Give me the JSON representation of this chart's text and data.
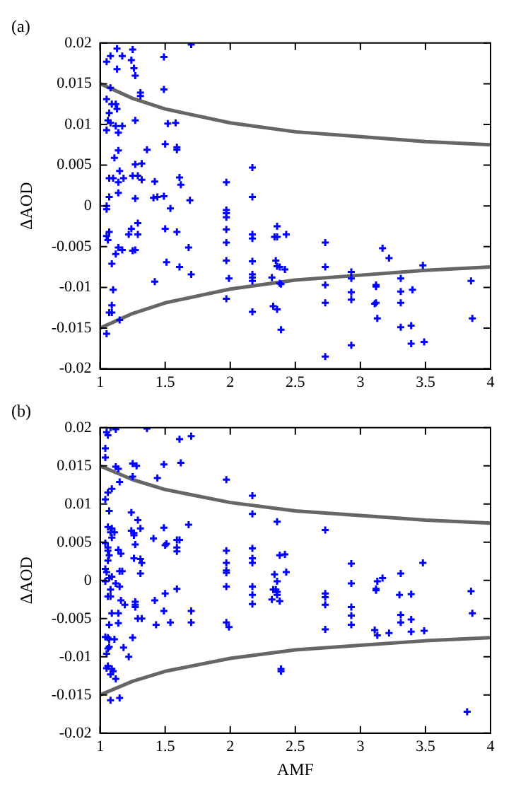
{
  "chart_data": [
    {
      "type": "scatter",
      "title": "(a)",
      "ylabel": "ΔAOD",
      "xlim": [
        1,
        4
      ],
      "xticks": [
        1,
        1.5,
        2,
        2.5,
        3,
        3.5,
        4
      ],
      "ylim": [
        -0.02,
        0.02
      ],
      "yticks": [
        -0.02,
        -0.015,
        -0.01,
        -0.005,
        0,
        0.005,
        0.01,
        0.015,
        0.02
      ],
      "grid": false,
      "legend": false,
      "series": [
        {
          "type": "scatter",
          "color": "#0000ff",
          "marker": "cross",
          "x": [
            1.05,
            1.08,
            1.13,
            1.17,
            1.13,
            1.25,
            1.24,
            1.26,
            1.27,
            1.49,
            1.7,
            1.49,
            1.08,
            1.05,
            1.09,
            1.12,
            1.13,
            1.07,
            1.06,
            1.08,
            1.12,
            1.17,
            1.05,
            1.14,
            1.31,
            1.31,
            1.27,
            1.52,
            1.58,
            1.5,
            1.59,
            1.59,
            1.36,
            1.14,
            1.11,
            1.15,
            1.07,
            1.1,
            1.14,
            1.18,
            1.27,
            1.32,
            1.25,
            1.29,
            1.32,
            1.14,
            1.07,
            1.27,
            1.41,
            1.44,
            1.49,
            1.42,
            1.61,
            1.62,
            1.69,
            1.05,
            1.05,
            1.54,
            1.29,
            1.24,
            1.22,
            1.29,
            1.07,
            1.05,
            1.06,
            1.5,
            1.59,
            1.27,
            1.25,
            1.14,
            1.17,
            1.12,
            1.68,
            1.09,
            1.51,
            1.61,
            1.7,
            1.42,
            1.1,
            1.09,
            1.09,
            1.07,
            1.15,
            1.05,
            1.97,
            1.97,
            1.97,
            1.97,
            1.97,
            1.97,
            1.97,
            1.99,
            1.97,
            2.17,
            2.17,
            2.17,
            2.17,
            2.17,
            2.17,
            2.17,
            2.17,
            2.17,
            2.32,
            2.34,
            2.36,
            2.36,
            2.43,
            2.35,
            2.36,
            2.38,
            2.42,
            2.38,
            2.39,
            2.33,
            2.36,
            2.39,
            2.73,
            2.73,
            2.73,
            2.73,
            2.73,
            2.93,
            2.93,
            2.93,
            2.93,
            2.93,
            3.17,
            3.22,
            3.12,
            3.12,
            3.12,
            3.11,
            3.13,
            3.31,
            3.31,
            3.31,
            3.31,
            3.4,
            3.39,
            3.39,
            3.48,
            3.49,
            3.85,
            3.86
          ],
          "values": [
            0.0177,
            0.0184,
            0.0193,
            0.0184,
            0.0168,
            0.0192,
            0.0179,
            0.0169,
            0.016,
            0.0183,
            0.0198,
            0.0143,
            0.0145,
            0.0131,
            0.0125,
            0.0125,
            0.0119,
            0.0114,
            0.0105,
            0.0102,
            0.0098,
            0.0098,
            0.0093,
            0.009,
            0.0139,
            0.0135,
            0.0105,
            0.0101,
            0.0102,
            0.0076,
            0.0072,
            0.0069,
            0.0069,
            0.0068,
            0.0059,
            0.0043,
            0.0034,
            0.0034,
            0.0029,
            0.0034,
            0.0051,
            0.0052,
            0.0037,
            0.0037,
            0.0032,
            0.0016,
            0.0011,
            0.0009,
            0.001,
            0.0011,
            0.0012,
            0.003,
            0.0035,
            0.0026,
            0.0007,
            0,
            -0.0004,
            -0.0003,
            -0.0021,
            -0.0028,
            -0.0035,
            -0.0035,
            -0.0032,
            -0.0037,
            -0.0042,
            -0.0028,
            -0.0032,
            -0.0054,
            -0.0055,
            -0.0051,
            -0.0054,
            -0.0059,
            -0.0051,
            -0.0071,
            -0.0069,
            -0.0075,
            -0.0084,
            -0.0093,
            -0.0103,
            -0.0122,
            -0.0131,
            -0.0131,
            -0.014,
            -0.0157,
            0.0029,
            -0.0005,
            -0.0009,
            -0.0014,
            -0.0029,
            -0.0045,
            -0.0067,
            -0.0089,
            -0.0114,
            0.0047,
            0.0011,
            -0.0035,
            -0.004,
            -0.0068,
            -0.0084,
            -0.0088,
            -0.0092,
            -0.013,
            -0.0088,
            -0.0038,
            -0.0038,
            -0.0025,
            -0.0035,
            -0.0067,
            -0.0074,
            -0.0075,
            -0.0078,
            -0.0095,
            -0.0096,
            -0.0123,
            -0.0127,
            -0.0152,
            -0.0045,
            -0.0075,
            -0.0097,
            -0.0119,
            -0.0185,
            -0.0081,
            -0.0089,
            -0.0106,
            -0.0115,
            -0.0171,
            -0.0052,
            -0.0064,
            -0.0097,
            -0.0099,
            -0.0119,
            -0.012,
            -0.0138,
            -0.0089,
            -0.0105,
            -0.0119,
            -0.0149,
            -0.0103,
            -0.0147,
            -0.0169,
            -0.0073,
            -0.0167,
            -0.0092,
            -0.0138
          ]
        },
        {
          "type": "line",
          "color": "#666666",
          "marker": "none",
          "line_style": "solid",
          "x": [
            1,
            1.25,
            1.5,
            2,
            2.5,
            3,
            3.5,
            4
          ],
          "values": [
            0.015,
            0.0132,
            0.0119,
            0.0102,
            0.0091,
            0.0085,
            0.0079,
            0.0075
          ]
        },
        {
          "type": "line",
          "color": "#666666",
          "marker": "none",
          "line_style": "solid",
          "x": [
            1,
            1.25,
            1.5,
            2,
            2.5,
            3,
            3.5,
            4
          ],
          "values": [
            -0.015,
            -0.0132,
            -0.0119,
            -0.0102,
            -0.0091,
            -0.0085,
            -0.0079,
            -0.0075
          ]
        }
      ]
    },
    {
      "type": "scatter",
      "title": "(b)",
      "xlabel": "AMF",
      "ylabel": "ΔAOD",
      "xlim": [
        1,
        4
      ],
      "xticks": [
        1,
        1.5,
        2,
        2.5,
        3,
        3.5,
        4
      ],
      "ylim": [
        -0.02,
        0.02
      ],
      "yticks": [
        -0.02,
        -0.015,
        -0.01,
        -0.005,
        0,
        0.005,
        0.01,
        0.015,
        0.02
      ],
      "grid": false,
      "legend": false,
      "series": [
        {
          "type": "scatter",
          "color": "#0000ff",
          "marker": "cross",
          "x": [
            1.08,
            1.12,
            1.36,
            1.05,
            1.06,
            1.61,
            1.7,
            1.04,
            1.04,
            1.12,
            1.14,
            1.15,
            1.25,
            1.28,
            1.25,
            1.44,
            1.49,
            1.62,
            1.09,
            1.06,
            1.04,
            1.07,
            1.24,
            1.29,
            1.97,
            2.17,
            2.17,
            2.36,
            2.73,
            1.06,
            1.09,
            1.08,
            1.11,
            1.09,
            1.24,
            1.26,
            1.26,
            1.31,
            1.49,
            1.68,
            1.41,
            1.59,
            1.61,
            1.5,
            1.51,
            1.59,
            1.59,
            1.27,
            1.04,
            1.06,
            1.06,
            1.07,
            1.14,
            1.16,
            1.26,
            1.31,
            1.32,
            1.31,
            1.06,
            1.04,
            1.05,
            1.15,
            1.17,
            1.07,
            1.09,
            1.04,
            1.12,
            1.15,
            1.08,
            1.06,
            1.08,
            1.16,
            1.19,
            1.27,
            1.27,
            1.27,
            1.42,
            1.5,
            1.59,
            1.49,
            1.7,
            1.09,
            1.14,
            1.29,
            1.32,
            1.07,
            1.14,
            1.54,
            1.7,
            1.43,
            1.04,
            1.06,
            1.07,
            1.11,
            1.07,
            1.06,
            1.25,
            1.18,
            1.22,
            1.05,
            1.06,
            1.05,
            1.09,
            1.1,
            1.08,
            1.12,
            1.08,
            1.15,
            1.97,
            1.97,
            1.97,
            1.97,
            1.97,
            1.97,
            1.99,
            2.17,
            2.17,
            2.17,
            2.17,
            2.17,
            2.17,
            2.38,
            2.42,
            2.43,
            2.34,
            2.36,
            2.33,
            2.35,
            2.36,
            2.36,
            2.32,
            2.38,
            2.39,
            2.39,
            2.73,
            2.73,
            2.73,
            2.73,
            2.93,
            2.93,
            2.93,
            2.93,
            2.93,
            3.13,
            3.17,
            3.12,
            3.12,
            3.11,
            3.13,
            3.22,
            3.31,
            3.3,
            3.31,
            3.31,
            3.39,
            3.39,
            3.39,
            3.48,
            3.49,
            3.85,
            3.86,
            3.82
          ],
          "values": [
            0.02,
            0.0198,
            0.0199,
            0.0194,
            0.019,
            0.0185,
            0.0189,
            0.0173,
            0.0161,
            0.0149,
            0.0146,
            0.0129,
            0.0153,
            0.015,
            0.0136,
            0.0134,
            0.0152,
            0.0154,
            0.012,
            0.0115,
            0.0106,
            0.0091,
            0.0089,
            0.0079,
            0.0132,
            0.0111,
            0.0087,
            0.0077,
            0.0066,
            0.007,
            0.0068,
            0.0063,
            0.0063,
            0.0056,
            0.0065,
            0.0062,
            0.0059,
            0.0068,
            0.0069,
            0.0073,
            0.0055,
            0.0053,
            0.0053,
            0.0046,
            0.0048,
            0.0043,
            0.0038,
            0.0047,
            0.0049,
            0.0043,
            0.0039,
            0.0033,
            0.004,
            0.0035,
            0.0029,
            0.0028,
            0.0023,
            0.0009,
            0.0026,
            0.0015,
            0.0011,
            0.0012,
            0.0012,
            0.0003,
            0.0005,
            -0.0001,
            -0.0004,
            -0.0008,
            -0.0012,
            -0.0021,
            -0.0021,
            -0.0026,
            -0.0032,
            -0.0028,
            -0.0032,
            -0.0035,
            -0.0026,
            -0.0017,
            -0.0011,
            -0.004,
            -0.004,
            -0.0043,
            -0.0043,
            -0.005,
            -0.005,
            -0.0058,
            -0.0056,
            -0.0055,
            -0.0055,
            -0.0058,
            -0.0074,
            -0.0075,
            -0.0077,
            -0.0077,
            -0.0087,
            -0.0089,
            -0.0075,
            -0.0088,
            -0.01,
            -0.0096,
            -0.0112,
            -0.0115,
            -0.0116,
            -0.0119,
            -0.0123,
            -0.0129,
            -0.0157,
            -0.0154,
            0.0039,
            0.0023,
            0.0013,
            0.001,
            -0.0008,
            -0.0055,
            -0.0061,
            0.0042,
            0.0029,
            0.0023,
            -0.0008,
            -0.0019,
            -0.0031,
            0.0033,
            0.0034,
            0.0011,
            0.0008,
            -0.0001,
            -0.0012,
            -0.0012,
            -0.0015,
            -0.0019,
            -0.0025,
            -0.0027,
            -0.0116,
            -0.0119,
            -0.0017,
            -0.0022,
            -0.0032,
            -0.0064,
            0.0022,
            -0.0004,
            -0.0035,
            -0.0046,
            -0.0058,
            -0.0001,
            0.0003,
            -0.0011,
            -0.0013,
            -0.0065,
            -0.0072,
            -0.0069,
            0.0009,
            -0.0019,
            -0.0045,
            -0.0055,
            -0.0018,
            -0.0051,
            -0.0067,
            0.0023,
            -0.0066,
            -0.0014,
            -0.0043,
            -0.0172
          ]
        },
        {
          "type": "line",
          "color": "#666666",
          "marker": "none",
          "line_style": "solid",
          "x": [
            1,
            1.25,
            1.5,
            2,
            2.5,
            3,
            3.5,
            4
          ],
          "values": [
            0.015,
            0.0132,
            0.0119,
            0.0102,
            0.0091,
            0.0085,
            0.0079,
            0.0075
          ]
        },
        {
          "type": "line",
          "color": "#666666",
          "marker": "none",
          "line_style": "solid",
          "x": [
            1,
            1.25,
            1.5,
            2,
            2.5,
            3,
            3.5,
            4
          ],
          "values": [
            -0.015,
            -0.0132,
            -0.0119,
            -0.0102,
            -0.0091,
            -0.0085,
            -0.0079,
            -0.0075
          ]
        }
      ]
    }
  ]
}
